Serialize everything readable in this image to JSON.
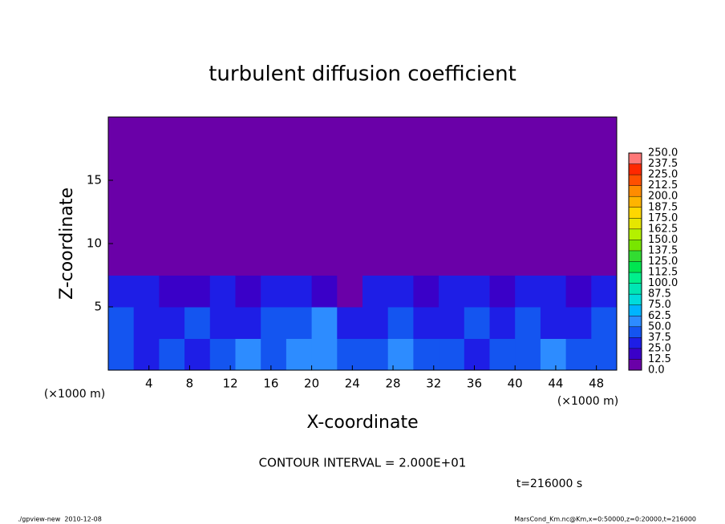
{
  "chart_data": {
    "type": "heatmap",
    "title": "turbulent diffusion coefficient",
    "x_label": "X-coordinate",
    "y_label": "Z-coordinate",
    "x_unit": "(×1000 m)",
    "y_unit": "(×1000 m)",
    "xlim": [
      0,
      50
    ],
    "ylim": [
      0,
      20
    ],
    "xticks": [
      4,
      8,
      12,
      16,
      20,
      24,
      28,
      32,
      36,
      40,
      44,
      48
    ],
    "yticks": [
      5,
      10,
      15
    ],
    "field": {
      "x": [
        1.25,
        3.75,
        6.25,
        8.75,
        11.25,
        13.75,
        16.25,
        18.75,
        21.25,
        23.75,
        26.25,
        28.75,
        31.25,
        33.75,
        36.25,
        38.75,
        41.25,
        43.75,
        46.25,
        48.75
      ],
      "z": [
        1.25,
        3.75,
        6.25,
        8.75,
        11.25,
        13.75,
        16.25,
        18.75
      ],
      "values": [
        [
          45,
          30,
          40,
          35,
          45,
          50,
          40,
          55,
          60,
          45,
          40,
          50,
          45,
          40,
          35,
          45,
          40,
          50,
          45,
          40
        ],
        [
          40,
          35,
          25,
          45,
          35,
          30,
          40,
          45,
          50,
          30,
          25,
          40,
          35,
          30,
          45,
          35,
          40,
          30,
          35,
          40
        ],
        [
          30,
          25,
          20,
          15,
          25,
          20,
          30,
          35,
          15,
          10,
          30,
          35,
          20,
          25,
          30,
          20,
          25,
          30,
          20,
          25
        ],
        [
          0,
          0,
          0,
          0,
          5,
          5,
          0,
          0,
          0,
          0,
          0,
          0,
          0,
          0,
          0,
          0,
          5,
          5,
          0,
          0
        ],
        [
          0,
          0,
          0,
          0,
          0,
          0,
          0,
          0,
          0,
          0,
          0,
          0,
          0,
          0,
          0,
          0,
          0,
          0,
          0,
          0
        ],
        [
          0,
          0,
          0,
          0,
          0,
          0,
          0,
          0,
          0,
          0,
          0,
          0,
          0,
          0,
          0,
          0,
          0,
          0,
          0,
          0
        ],
        [
          0,
          0,
          0,
          0,
          0,
          0,
          0,
          0,
          0,
          0,
          0,
          0,
          0,
          0,
          0,
          0,
          0,
          0,
          0,
          0
        ],
        [
          0,
          0,
          0,
          0,
          0,
          0,
          0,
          0,
          0,
          0,
          0,
          0,
          0,
          0,
          0,
          0,
          0,
          0,
          0,
          0
        ]
      ]
    },
    "colorbar": {
      "ticks": [
        {
          "value": 0,
          "label": "0.0"
        },
        {
          "value": 12.5,
          "label": "12.5"
        },
        {
          "value": 25,
          "label": "25.0"
        },
        {
          "value": 37.5,
          "label": "37.5"
        },
        {
          "value": 50,
          "label": "50.0"
        },
        {
          "value": 62.5,
          "label": "62.5"
        },
        {
          "value": 75,
          "label": "75.0"
        },
        {
          "value": 87.5,
          "label": "87.5"
        },
        {
          "value": 100,
          "label": "100.0"
        },
        {
          "value": 112.5,
          "label": "112.5"
        },
        {
          "value": 125,
          "label": "125.0"
        },
        {
          "value": 137.5,
          "label": "137.5"
        },
        {
          "value": 150,
          "label": "150.0"
        },
        {
          "value": 162.5,
          "label": "162.5"
        },
        {
          "value": 175,
          "label": "175.0"
        },
        {
          "value": 187.5,
          "label": "187.5"
        },
        {
          "value": 200,
          "label": "200.0"
        },
        {
          "value": 212.5,
          "label": "212.5"
        },
        {
          "value": 225,
          "label": "225.0"
        },
        {
          "value": 237.5,
          "label": "237.5"
        },
        {
          "value": 250,
          "label": "250.0"
        }
      ],
      "colors": [
        "#6a00a8",
        "#3a00c8",
        "#1e1ee6",
        "#1455f0",
        "#2d8cff",
        "#00b4ff",
        "#00dcdc",
        "#00e6b4",
        "#00f08c",
        "#00e650",
        "#32dc32",
        "#78e600",
        "#b4f000",
        "#e6e600",
        "#ffd700",
        "#ffb400",
        "#ff8c00",
        "#ff5000",
        "#ff2800",
        "#ff7878"
      ]
    },
    "contour_interval": "CONTOUR INTERVAL = 2.000E+01",
    "time": "t=216000 s",
    "footer_left": "./gpview-new  2010-12-08",
    "footer_right": "MarsCond_Km.nc@Km,x=0:50000,z=0:20000,t=216000"
  }
}
